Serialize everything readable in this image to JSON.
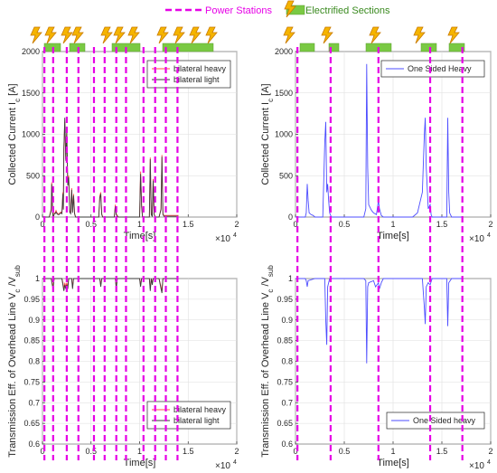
{
  "legend_top": {
    "power_stations_label": "Power Stations",
    "electrified_sections_label": "Electrified Sections",
    "power_station_color": "#e600e6",
    "electrified_color": "#7ac943"
  },
  "chart_data": [
    {
      "type": "line",
      "ylabel": "Collected Current I c [A]",
      "xlabel": "Time[s]",
      "x_exponent": "×10",
      "x_exponent_power": "4",
      "xlim": [
        0,
        2
      ],
      "ylim": [
        0,
        2000
      ],
      "xticks": [
        "0",
        "0.5",
        "1",
        "1.5",
        "2"
      ],
      "yticks": [
        "0",
        "500",
        "1000",
        "1500",
        "2000"
      ],
      "grid": true,
      "legend_position": "top-right",
      "power_stations_x": [
        0.02,
        0.11,
        0.25,
        0.37,
        0.53,
        0.64,
        0.76,
        0.86,
        1.04,
        1.16,
        1.27,
        1.39
      ],
      "series": [
        {
          "name": "bilateral heavy",
          "color": "#ff4d4d",
          "x": [
            0,
            0.07,
            0.08,
            0.09,
            0.095,
            0.1,
            0.105,
            0.11,
            0.115,
            0.12,
            0.13,
            0.14,
            0.15,
            0.16,
            0.17,
            0.18,
            0.19,
            0.2,
            0.21,
            0.215,
            0.22,
            0.23,
            0.24,
            0.25,
            0.26,
            0.27,
            0.28,
            0.29,
            0.3,
            0.31,
            0.32,
            0.33,
            0.34,
            0.4,
            0.58,
            0.59,
            0.6,
            0.61,
            0.62,
            0.63,
            0.74,
            0.75,
            0.76,
            0.77,
            0.78,
            1.0,
            1.01,
            1.02,
            1.03,
            1.1,
            1.11,
            1.12,
            1.13,
            1.14,
            1.15,
            1.16,
            1.2,
            1.22,
            1.23,
            1.24,
            1.25,
            1.4
          ],
          "y": [
            0,
            0,
            50,
            100,
            420,
            300,
            50,
            0,
            0,
            50,
            50,
            80,
            50,
            40,
            40,
            50,
            60,
            50,
            300,
            100,
            850,
            1150,
            700,
            1050,
            400,
            500,
            80,
            50,
            350,
            60,
            280,
            50,
            0,
            0,
            0,
            250,
            300,
            40,
            0,
            0,
            0,
            150,
            40,
            20,
            0,
            0,
            550,
            150,
            0,
            0,
            720,
            40,
            10,
            460,
            40,
            0,
            0,
            100,
            750,
            40,
            20,
            20
          ]
        },
        {
          "name": "bilateral light",
          "color": "#3a3a3a",
          "x": [
            0,
            0.07,
            0.08,
            0.09,
            0.095,
            0.1,
            0.105,
            0.11,
            0.115,
            0.12,
            0.13,
            0.14,
            0.15,
            0.16,
            0.17,
            0.18,
            0.19,
            0.2,
            0.21,
            0.215,
            0.22,
            0.23,
            0.24,
            0.25,
            0.26,
            0.27,
            0.28,
            0.29,
            0.3,
            0.31,
            0.32,
            0.33,
            0.34,
            0.4,
            0.58,
            0.59,
            0.6,
            0.61,
            0.62,
            0.63,
            0.74,
            0.75,
            0.76,
            0.77,
            0.78,
            1.0,
            1.01,
            1.02,
            1.03,
            1.1,
            1.11,
            1.12,
            1.13,
            1.14,
            1.15,
            1.16,
            1.2,
            1.22,
            1.23,
            1.24,
            1.25,
            1.4
          ],
          "y": [
            0,
            0,
            40,
            80,
            400,
            280,
            40,
            0,
            0,
            40,
            40,
            60,
            40,
            30,
            30,
            40,
            50,
            40,
            280,
            90,
            820,
            1200,
            680,
            1020,
            380,
            480,
            60,
            40,
            330,
            50,
            260,
            40,
            0,
            0,
            0,
            230,
            280,
            30,
            0,
            0,
            0,
            130,
            30,
            10,
            0,
            0,
            520,
            130,
            0,
            0,
            700,
            30,
            5,
            440,
            30,
            0,
            0,
            90,
            730,
            30,
            10,
            10
          ]
        }
      ]
    },
    {
      "type": "line",
      "ylabel": "Collected Current I c [A]",
      "xlabel": "Time[s]",
      "x_exponent": "×10",
      "x_exponent_power": "4",
      "xlim": [
        0,
        2
      ],
      "ylim": [
        0,
        2000
      ],
      "xticks": [
        "0",
        "0.5",
        "1",
        "1.5",
        "2"
      ],
      "yticks": [
        "0",
        "500",
        "1000",
        "1500",
        "2000"
      ],
      "grid": true,
      "legend_position": "top-right",
      "power_stations_x": [
        0.02,
        0.36,
        0.85,
        1.38,
        1.71
      ],
      "series": [
        {
          "name": "One Sided Heavy",
          "color": "#4d4dff",
          "x": [
            0,
            0.1,
            0.11,
            0.12,
            0.13,
            0.14,
            0.16,
            0.18,
            0.2,
            0.28,
            0.3,
            0.31,
            0.32,
            0.33,
            0.34,
            0.35,
            0.36,
            0.37,
            0.4,
            0.7,
            0.72,
            0.73,
            0.74,
            0.75,
            0.77,
            0.78,
            0.8,
            0.83,
            0.85,
            0.86,
            0.88,
            0.9,
            0.95,
            1.2,
            1.25,
            1.3,
            1.32,
            1.33,
            1.34,
            1.36,
            1.38,
            1.39,
            1.4,
            1.42,
            1.45,
            1.55,
            1.56,
            1.57,
            1.58,
            1.6,
            1.7
          ],
          "y": [
            0,
            0,
            50,
            400,
            200,
            50,
            30,
            20,
            0,
            0,
            900,
            1150,
            300,
            400,
            200,
            50,
            20,
            0,
            0,
            0,
            100,
            1850,
            600,
            150,
            100,
            80,
            50,
            30,
            200,
            100,
            20,
            0,
            0,
            0,
            50,
            300,
            1000,
            1200,
            600,
            100,
            150,
            30,
            0,
            0,
            0,
            0,
            1200,
            300,
            50,
            0,
            0
          ]
        }
      ]
    },
    {
      "type": "line",
      "ylabel": "Transmission Eff. of Overhead Line V c /V sub",
      "xlabel": "Time[s]",
      "x_exponent": "×10",
      "x_exponent_power": "4",
      "xlim": [
        0,
        2
      ],
      "ylim": [
        0.6,
        1
      ],
      "xticks": [
        "0",
        "0.5",
        "1",
        "1.5",
        "2"
      ],
      "yticks": [
        "0.6",
        "0.65",
        "0.7",
        "0.75",
        "0.8",
        "0.85",
        "0.9",
        "0.95",
        "1"
      ],
      "grid": true,
      "legend_position": "bottom-right",
      "series": [
        {
          "name": "bilateral heavy",
          "color": "#ff4d4d",
          "x": [
            0,
            0.09,
            0.1,
            0.11,
            0.12,
            0.2,
            0.21,
            0.22,
            0.23,
            0.24,
            0.25,
            0.26,
            0.27,
            0.3,
            0.31,
            0.32,
            0.4,
            0.59,
            0.6,
            0.61,
            0.75,
            0.76,
            0.77,
            1.0,
            1.01,
            1.02,
            1.1,
            1.11,
            1.12,
            1.13,
            1.14,
            1.2,
            1.22,
            1.23,
            1.24,
            1.4
          ],
          "y": [
            1,
            1,
            0.99,
            0.98,
            1,
            1,
            0.99,
            0.975,
            0.99,
            0.98,
            0.99,
            0.98,
            1,
            1,
            0.98,
            1,
            1,
            1,
            0.985,
            1,
            1,
            0.98,
            1,
            1,
            0.985,
            1,
            1,
            0.975,
            1,
            0.99,
            1,
            1,
            0.98,
            0.97,
            1,
            1
          ]
        },
        {
          "name": "bilateral light",
          "color": "#3a3a3a",
          "x": [
            0,
            0.09,
            0.1,
            0.11,
            0.12,
            0.2,
            0.21,
            0.22,
            0.23,
            0.24,
            0.25,
            0.26,
            0.27,
            0.3,
            0.31,
            0.32,
            0.4,
            0.59,
            0.6,
            0.61,
            0.75,
            0.76,
            0.77,
            1.0,
            1.01,
            1.02,
            1.1,
            1.11,
            1.12,
            1.13,
            1.14,
            1.2,
            1.22,
            1.23,
            1.24,
            1.4
          ],
          "y": [
            1,
            1,
            0.985,
            0.975,
            1,
            1,
            0.985,
            0.97,
            0.985,
            0.975,
            0.985,
            0.975,
            1,
            1,
            0.975,
            1,
            1,
            1,
            0.98,
            1,
            1,
            0.975,
            1,
            1,
            0.98,
            1,
            1,
            0.97,
            1,
            0.985,
            1,
            1,
            0.975,
            0.965,
            1,
            1
          ]
        }
      ]
    },
    {
      "type": "line",
      "ylabel": "Transmission Eff. of Overhead Line V c /V sub",
      "xlabel": "Time[s]",
      "x_exponent": "×10",
      "x_exponent_power": "4",
      "xlim": [
        0,
        2
      ],
      "ylim": [
        0.6,
        1
      ],
      "xticks": [
        "0",
        "0.5",
        "1",
        "1.5",
        "2"
      ],
      "yticks": [
        "0.6",
        "0.65",
        "0.7",
        "0.75",
        "0.8",
        "0.85",
        "0.9",
        "0.95",
        "1"
      ],
      "grid": true,
      "legend_position": "bottom-right",
      "series": [
        {
          "name": "One Sided heavy",
          "color": "#4d4dff",
          "x": [
            0,
            0.1,
            0.11,
            0.12,
            0.13,
            0.2,
            0.3,
            0.31,
            0.32,
            0.33,
            0.34,
            0.35,
            0.4,
            0.7,
            0.72,
            0.73,
            0.74,
            0.75,
            0.8,
            0.82,
            0.85,
            0.86,
            0.88,
            0.9,
            1.3,
            1.32,
            1.33,
            1.34,
            1.36,
            1.38,
            1.4,
            1.55,
            1.56,
            1.57,
            1.6,
            1.7
          ],
          "y": [
            1,
            1,
            0.995,
            0.98,
            0.995,
            1,
            1,
            0.9,
            0.84,
            0.98,
            0.99,
            1,
            1,
            1,
            0.995,
            0.795,
            0.98,
            0.99,
            0.995,
            0.98,
            0.99,
            0.975,
            0.99,
            1,
            1,
            0.93,
            0.89,
            0.98,
            0.99,
            0.985,
            1,
            1,
            0.885,
            0.99,
            1,
            1
          ]
        }
      ]
    }
  ]
}
